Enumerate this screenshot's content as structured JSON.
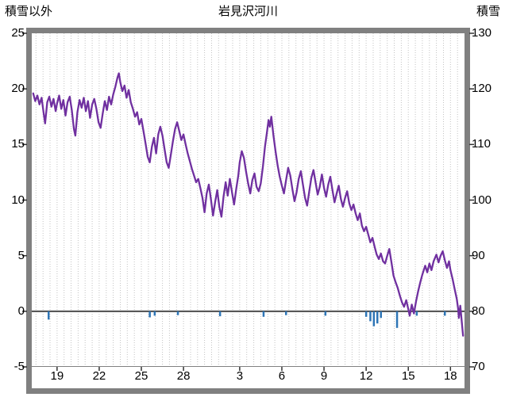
{
  "chart_data": {
    "type": "line",
    "title": "岩見沢河川",
    "left_axis": {
      "label": "積雪以外",
      "min": -5,
      "max": 25,
      "ticks": [
        "25",
        "20",
        "15",
        "10",
        "5",
        "0",
        "-5"
      ],
      "tick_values": [
        25,
        20,
        15,
        10,
        5,
        0,
        -5
      ]
    },
    "right_axis": {
      "label": "積雪",
      "min": 70,
      "max": 130,
      "ticks": [
        "130",
        "120",
        "110",
        "100",
        "90",
        "80",
        "70"
      ],
      "tick_values": [
        130,
        120,
        110,
        100,
        90,
        80,
        70
      ]
    },
    "x_axis": {
      "domain": [
        17.2,
        48.0
      ],
      "grid_step": 0.5,
      "ticks": [
        {
          "pos": 19,
          "label": "19"
        },
        {
          "pos": 22,
          "label": "22"
        },
        {
          "pos": 25,
          "label": "25"
        },
        {
          "pos": 28,
          "label": "28"
        },
        {
          "pos": 32,
          "label": "3"
        },
        {
          "pos": 35,
          "label": "6"
        },
        {
          "pos": 38,
          "label": "9"
        },
        {
          "pos": 41,
          "label": "12"
        },
        {
          "pos": 44,
          "label": "15"
        },
        {
          "pos": 47,
          "label": "18"
        }
      ]
    },
    "colors": {
      "line": "#7030A0",
      "bars": "#2E75B6",
      "frame": "#808080",
      "grid": "#C3C3C3",
      "zero_line": "#4D4D4D",
      "tick": "#333333",
      "text": "#000000",
      "background": "#FFFFFF"
    },
    "series": [
      {
        "name": "purple-line",
        "color": "#7030A0",
        "points": [
          [
            17.3,
            19.6
          ],
          [
            17.45,
            18.9
          ],
          [
            17.6,
            19.4
          ],
          [
            17.75,
            18.6
          ],
          [
            17.9,
            19.2
          ],
          [
            18.05,
            17.8
          ],
          [
            18.15,
            16.9
          ],
          [
            18.3,
            18.8
          ],
          [
            18.45,
            19.3
          ],
          [
            18.6,
            18.4
          ],
          [
            18.75,
            19.1
          ],
          [
            18.9,
            18.0
          ],
          [
            19.0,
            18.7
          ],
          [
            19.15,
            19.4
          ],
          [
            19.3,
            18.2
          ],
          [
            19.45,
            19.0
          ],
          [
            19.6,
            17.6
          ],
          [
            19.75,
            18.8
          ],
          [
            19.9,
            19.3
          ],
          [
            20.05,
            18.1
          ],
          [
            20.2,
            16.4
          ],
          [
            20.3,
            15.8
          ],
          [
            20.45,
            17.9
          ],
          [
            20.6,
            19.0
          ],
          [
            20.75,
            18.3
          ],
          [
            20.9,
            19.2
          ],
          [
            21.05,
            18.0
          ],
          [
            21.2,
            18.9
          ],
          [
            21.35,
            17.4
          ],
          [
            21.5,
            18.6
          ],
          [
            21.65,
            19.1
          ],
          [
            21.8,
            18.2
          ],
          [
            21.95,
            17.0
          ],
          [
            22.1,
            16.5
          ],
          [
            22.25,
            17.8
          ],
          [
            22.4,
            18.9
          ],
          [
            22.55,
            18.1
          ],
          [
            22.7,
            19.3
          ],
          [
            22.85,
            18.6
          ],
          [
            23.0,
            19.5
          ],
          [
            23.15,
            20.2
          ],
          [
            23.3,
            21.0
          ],
          [
            23.4,
            21.4
          ],
          [
            23.5,
            20.6
          ],
          [
            23.65,
            19.8
          ],
          [
            23.8,
            20.3
          ],
          [
            23.95,
            19.2
          ],
          [
            24.1,
            19.9
          ],
          [
            24.25,
            18.8
          ],
          [
            24.4,
            18.2
          ],
          [
            24.55,
            17.5
          ],
          [
            24.7,
            17.9
          ],
          [
            24.85,
            16.8
          ],
          [
            25.0,
            17.3
          ],
          [
            25.15,
            16.2
          ],
          [
            25.3,
            15.1
          ],
          [
            25.45,
            13.9
          ],
          [
            25.6,
            13.4
          ],
          [
            25.75,
            14.8
          ],
          [
            25.9,
            15.6
          ],
          [
            26.05,
            14.2
          ],
          [
            26.2,
            15.9
          ],
          [
            26.35,
            16.6
          ],
          [
            26.5,
            15.8
          ],
          [
            26.65,
            14.6
          ],
          [
            26.8,
            13.4
          ],
          [
            26.95,
            12.9
          ],
          [
            27.1,
            14.1
          ],
          [
            27.25,
            15.3
          ],
          [
            27.4,
            16.4
          ],
          [
            27.55,
            17.0
          ],
          [
            27.7,
            16.2
          ],
          [
            27.85,
            15.4
          ],
          [
            28.0,
            15.9
          ],
          [
            28.15,
            15.0
          ],
          [
            28.3,
            14.2
          ],
          [
            28.45,
            13.5
          ],
          [
            28.6,
            12.8
          ],
          [
            28.75,
            12.2
          ],
          [
            28.9,
            11.6
          ],
          [
            29.05,
            11.9
          ],
          [
            29.2,
            11.1
          ],
          [
            29.35,
            10.2
          ],
          [
            29.5,
            8.9
          ],
          [
            29.65,
            10.6
          ],
          [
            29.8,
            11.4
          ],
          [
            29.95,
            10.1
          ],
          [
            30.1,
            8.6
          ],
          [
            30.25,
            9.8
          ],
          [
            30.4,
            10.9
          ],
          [
            30.55,
            9.4
          ],
          [
            30.7,
            8.5
          ],
          [
            30.85,
            10.3
          ],
          [
            31.0,
            11.6
          ],
          [
            31.15,
            10.4
          ],
          [
            31.3,
            11.9
          ],
          [
            31.45,
            10.7
          ],
          [
            31.6,
            9.6
          ],
          [
            31.75,
            11.0
          ],
          [
            31.9,
            12.2
          ],
          [
            32.0,
            13.4
          ],
          [
            32.15,
            14.4
          ],
          [
            32.3,
            13.8
          ],
          [
            32.45,
            12.6
          ],
          [
            32.6,
            11.5
          ],
          [
            32.75,
            10.6
          ],
          [
            32.9,
            11.8
          ],
          [
            33.05,
            12.4
          ],
          [
            33.2,
            11.2
          ],
          [
            33.35,
            10.8
          ],
          [
            33.5,
            11.5
          ],
          [
            33.65,
            13.0
          ],
          [
            33.8,
            14.8
          ],
          [
            33.95,
            16.2
          ],
          [
            34.05,
            17.2
          ],
          [
            34.15,
            16.6
          ],
          [
            34.25,
            17.5
          ],
          [
            34.4,
            15.8
          ],
          [
            34.55,
            14.4
          ],
          [
            34.7,
            13.1
          ],
          [
            34.85,
            12.1
          ],
          [
            35.0,
            11.3
          ],
          [
            35.15,
            10.6
          ],
          [
            35.3,
            11.8
          ],
          [
            35.45,
            12.9
          ],
          [
            35.6,
            12.2
          ],
          [
            35.75,
            11.0
          ],
          [
            35.9,
            9.9
          ],
          [
            36.05,
            10.7
          ],
          [
            36.2,
            11.9
          ],
          [
            36.35,
            12.6
          ],
          [
            36.5,
            11.4
          ],
          [
            36.65,
            10.2
          ],
          [
            36.8,
            9.5
          ],
          [
            36.95,
            10.8
          ],
          [
            37.1,
            12.0
          ],
          [
            37.25,
            12.7
          ],
          [
            37.4,
            11.6
          ],
          [
            37.55,
            10.5
          ],
          [
            37.7,
            11.2
          ],
          [
            37.85,
            12.3
          ],
          [
            38.0,
            11.1
          ],
          [
            38.15,
            10.3
          ],
          [
            38.3,
            11.4
          ],
          [
            38.45,
            12.1
          ],
          [
            38.6,
            10.9
          ],
          [
            38.75,
            9.8
          ],
          [
            38.9,
            10.6
          ],
          [
            39.05,
            11.3
          ],
          [
            39.2,
            10.1
          ],
          [
            39.35,
            9.4
          ],
          [
            39.5,
            10.2
          ],
          [
            39.65,
            10.8
          ],
          [
            39.8,
            9.7
          ],
          [
            39.95,
            9.1
          ],
          [
            40.1,
            9.6
          ],
          [
            40.25,
            8.8
          ],
          [
            40.4,
            8.2
          ],
          [
            40.55,
            8.8
          ],
          [
            40.7,
            7.7
          ],
          [
            40.85,
            7.2
          ],
          [
            41.0,
            7.6
          ],
          [
            41.15,
            6.9
          ],
          [
            41.3,
            6.2
          ],
          [
            41.45,
            6.6
          ],
          [
            41.6,
            5.8
          ],
          [
            41.75,
            5.1
          ],
          [
            41.9,
            4.7
          ],
          [
            42.05,
            5.2
          ],
          [
            42.2,
            4.5
          ],
          [
            42.35,
            4.3
          ],
          [
            42.5,
            5.0
          ],
          [
            42.65,
            5.6
          ],
          [
            42.8,
            4.4
          ],
          [
            42.95,
            3.2
          ],
          [
            43.1,
            2.6
          ],
          [
            43.25,
            2.1
          ],
          [
            43.4,
            1.4
          ],
          [
            43.55,
            0.8
          ],
          [
            43.7,
            0.4
          ],
          [
            43.85,
            1.0
          ],
          [
            44.0,
            0.2
          ],
          [
            44.1,
            -0.4
          ],
          [
            44.25,
            0.6
          ],
          [
            44.4,
            -0.2
          ],
          [
            44.55,
            0.9
          ],
          [
            44.7,
            1.8
          ],
          [
            44.85,
            2.6
          ],
          [
            45.0,
            3.3
          ],
          [
            45.2,
            4.1
          ],
          [
            45.35,
            3.5
          ],
          [
            45.5,
            4.3
          ],
          [
            45.65,
            3.7
          ],
          [
            45.8,
            4.5
          ],
          [
            46.0,
            5.1
          ],
          [
            46.15,
            4.4
          ],
          [
            46.3,
            5.0
          ],
          [
            46.45,
            5.4
          ],
          [
            46.6,
            4.6
          ],
          [
            46.75,
            3.9
          ],
          [
            46.9,
            4.5
          ],
          [
            47.0,
            3.7
          ],
          [
            47.15,
            2.9
          ],
          [
            47.3,
            2.0
          ],
          [
            47.45,
            1.1
          ],
          [
            47.55,
            0.2
          ],
          [
            47.6,
            -0.6
          ],
          [
            47.7,
            0.5
          ],
          [
            47.8,
            -0.9
          ],
          [
            47.9,
            -2.2
          ]
        ]
      }
    ],
    "bars": {
      "name": "blue-bars",
      "color": "#2E75B6",
      "points": [
        [
          18.4,
          -0.75
        ],
        [
          25.6,
          -0.55
        ],
        [
          25.95,
          -0.4
        ],
        [
          27.6,
          -0.35
        ],
        [
          30.6,
          -0.45
        ],
        [
          33.7,
          -0.5
        ],
        [
          35.3,
          -0.35
        ],
        [
          38.1,
          -0.4
        ],
        [
          41.0,
          -0.5
        ],
        [
          41.3,
          -0.9
        ],
        [
          41.55,
          -1.35
        ],
        [
          41.8,
          -1.1
        ],
        [
          42.05,
          -0.6
        ],
        [
          43.2,
          -1.5
        ],
        [
          44.6,
          -0.4
        ],
        [
          46.6,
          -0.4
        ]
      ]
    }
  }
}
